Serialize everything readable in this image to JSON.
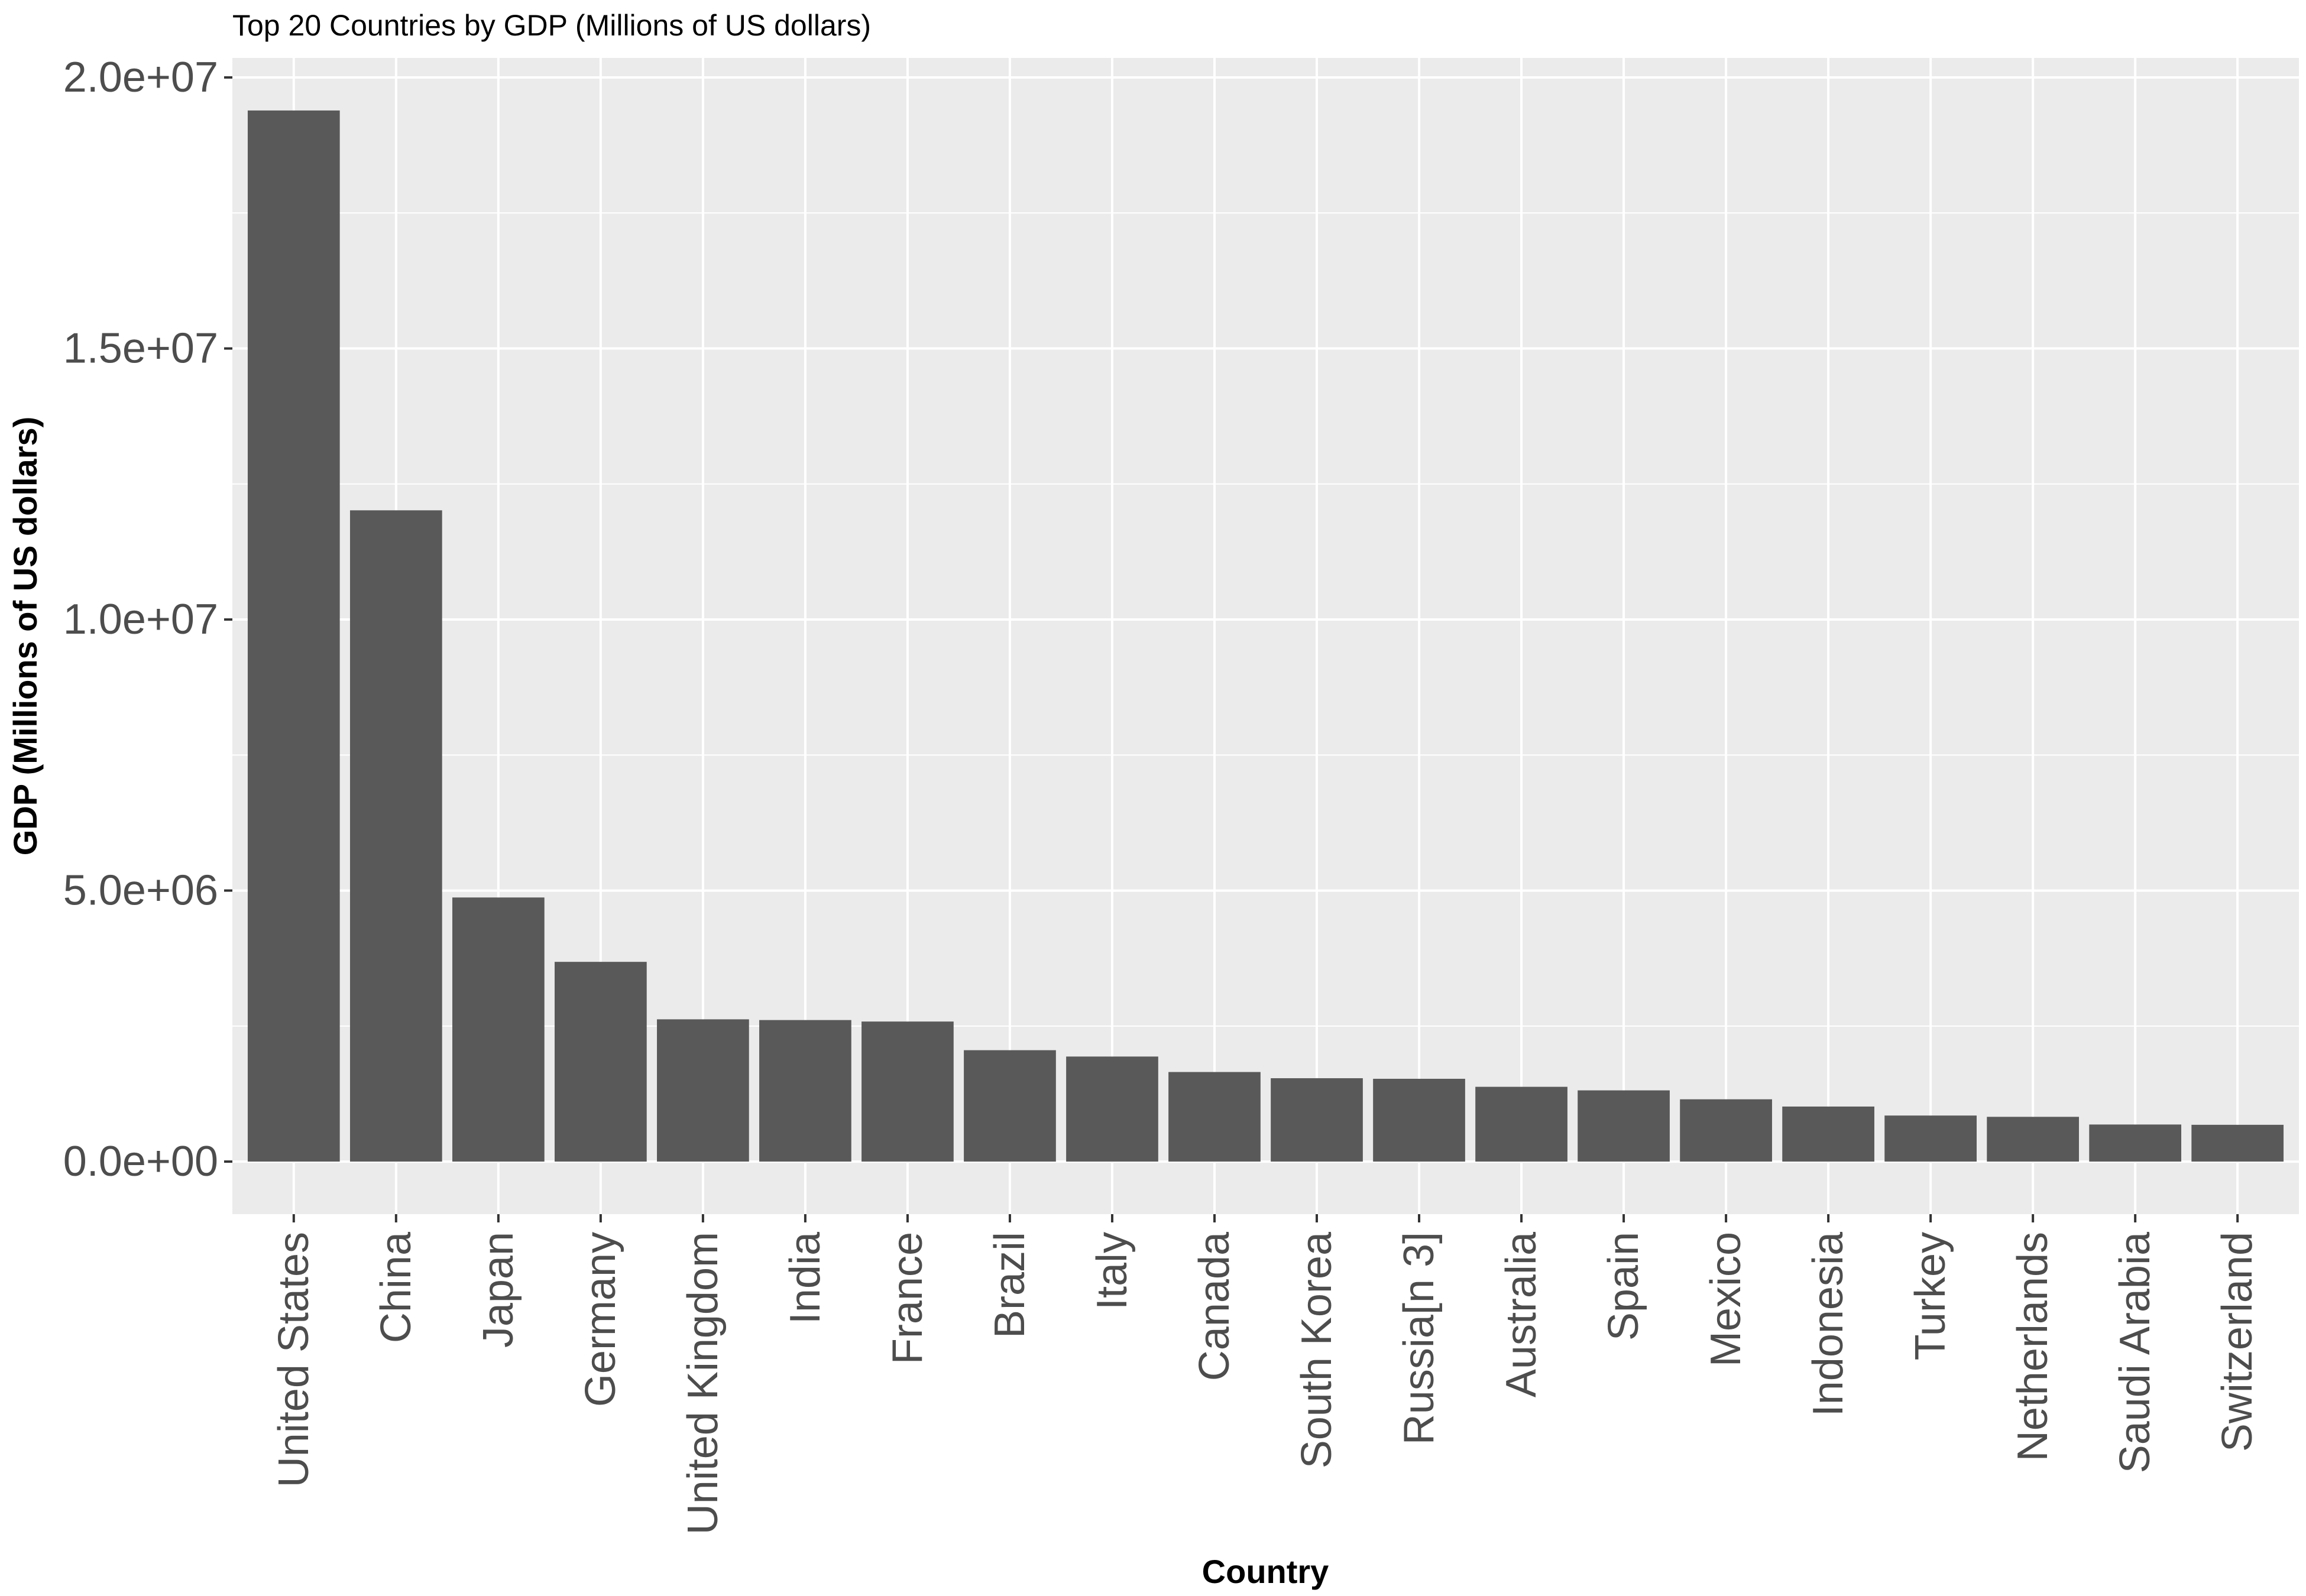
{
  "chart_data": {
    "type": "bar",
    "title": "Top 20 Countries by GDP (Millions of US dollars)",
    "xlabel": "Country",
    "ylabel": "GDP (Millions of US dollars)",
    "categories": [
      "United States",
      "China",
      "Japan",
      "Germany",
      "United Kingdom",
      "India",
      "France",
      "Brazil",
      "Italy",
      "Canada",
      "South Korea",
      "Russia[n 3]",
      "Australia",
      "Spain",
      "Mexico",
      "Indonesia",
      "Turkey",
      "Netherlands",
      "Saudi Arabia",
      "Switzerland"
    ],
    "values": [
      19390600,
      12014610,
      4872135,
      3684816,
      2624529,
      2611012,
      2583560,
      2054969,
      1937894,
      1652412,
      1538030,
      1527469,
      1379548,
      1313951,
      1149236,
      1015411,
      849480,
      825745,
      683827,
      678575
    ],
    "yticks": [
      "0.0e+00",
      "5.0e+06",
      "1.0e+07",
      "1.5e+07",
      "2.0e+07"
    ],
    "ytick_values": [
      0,
      5000000,
      10000000,
      15000000,
      20000000
    ],
    "ylim": [
      -969530,
      20360130
    ],
    "grid": true,
    "bar_color": "#595959",
    "panel_color": "#ebebeb",
    "grid_color": "#ffffff"
  }
}
